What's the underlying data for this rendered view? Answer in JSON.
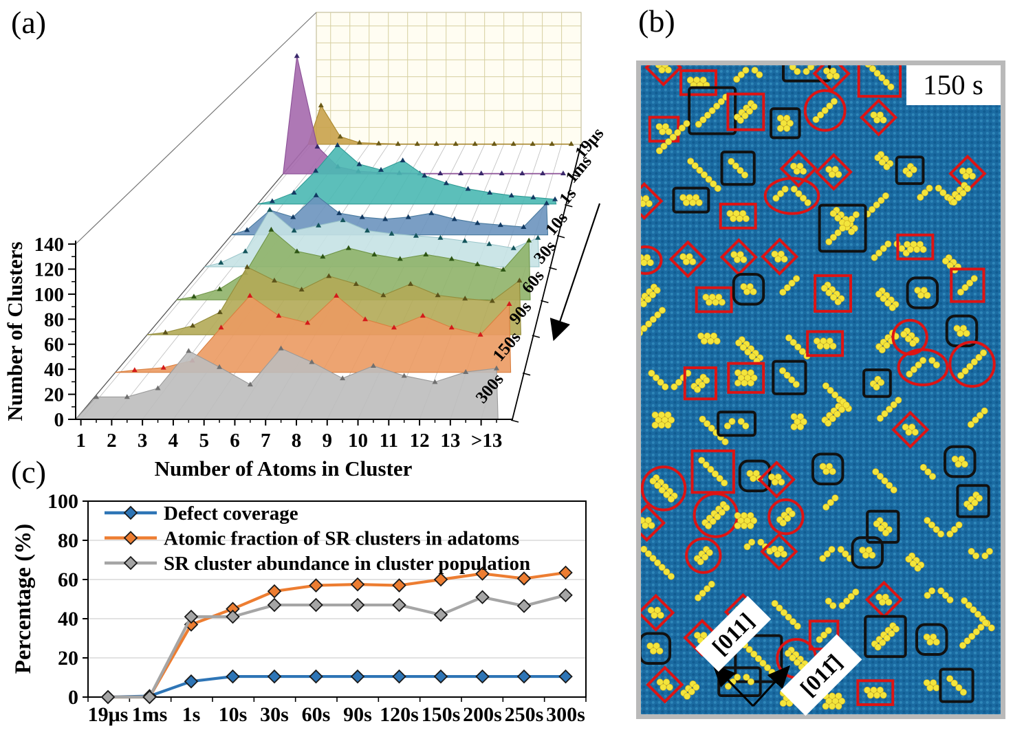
{
  "figure": {
    "panel_labels": {
      "a": "(a)",
      "b": "(b)",
      "c": "(c)"
    },
    "background": "#ffffff"
  },
  "chart_data": [
    {
      "id": "panel_a",
      "type": "area",
      "projection": "3d-waterfall",
      "xlabel": "Number of Atoms in Cluster",
      "ylabel": "Number of Clusters",
      "x_categories": [
        "1",
        "2",
        "3",
        "4",
        "5",
        "6",
        "7",
        "8",
        "9",
        "10",
        "11",
        "12",
        "13",
        ">13"
      ],
      "y_ticks": [
        0,
        20,
        40,
        60,
        80,
        100,
        120,
        140
      ],
      "ylim": [
        0,
        150
      ],
      "depth_axis_note": "time series stacked back (19μs) to front (300s); arrow beside depth axis points toward later times",
      "series": [
        {
          "name": "19μs",
          "fill": "#c9a24b",
          "edge": "#a8872e",
          "marker": "#6b5a17",
          "values": [
            45,
            9,
            2,
            1,
            0.5,
            0.5,
            0.5,
            0.5,
            0.5,
            0.5,
            0.5,
            0.5,
            0.5,
            0.5
          ]
        },
        {
          "name": "1ms",
          "fill": "#a569ad",
          "edge": "#8a4f96",
          "marker": "#39286b",
          "values": [
            130,
            30,
            8,
            3,
            1.5,
            1,
            0.5,
            0.5,
            0.5,
            0.5,
            0.5,
            0.5,
            0.5,
            0.5
          ]
        },
        {
          "name": "1s",
          "fill": "#4ab8b2",
          "edge": "#2f9b95",
          "marker": "#123a63",
          "values": [
            3,
            12,
            35,
            62,
            42,
            36,
            46,
            30,
            22,
            16,
            12,
            9,
            7,
            5
          ]
        },
        {
          "name": "10s",
          "fill": "#6b94be",
          "edge": "#48799e",
          "marker": "#123a63",
          "values": [
            5,
            25,
            18,
            40,
            22,
            18,
            16,
            18,
            22,
            16,
            12,
            10,
            8,
            32
          ]
        },
        {
          "name": "30s",
          "fill": "#c5e2e4",
          "edge": "#9cc6cb",
          "marker": "#14555c",
          "values": [
            4,
            15,
            55,
            35,
            40,
            45,
            35,
            32,
            30,
            28,
            25,
            22,
            18,
            28
          ]
        },
        {
          "name": "60s",
          "fill": "#8fb269",
          "edge": "#6f9548",
          "marker": "#2e5615",
          "values": [
            3,
            10,
            25,
            65,
            45,
            40,
            48,
            42,
            38,
            42,
            38,
            33,
            28,
            55
          ]
        },
        {
          "name": "90s",
          "fill": "#b3aa56",
          "edge": "#938c3a",
          "marker": "#5c531a",
          "values": [
            2,
            8,
            20,
            60,
            48,
            40,
            52,
            45,
            35,
            45,
            35,
            32,
            30,
            48
          ]
        },
        {
          "name": "150s",
          "fill": "#eb9a62",
          "edge": "#d97f3f",
          "marker": "#d41a1a",
          "values": [
            2,
            4,
            10,
            38,
            65,
            48,
            42,
            65,
            45,
            38,
            48,
            38,
            32,
            58
          ]
        },
        {
          "name": "300s",
          "fill": "#bcbcbc",
          "edge": "#9a9a9a",
          "marker": "#707070",
          "values": [
            18,
            18,
            25,
            55,
            42,
            28,
            57,
            46,
            33,
            43,
            35,
            30,
            38,
            41
          ]
        }
      ]
    },
    {
      "id": "panel_c",
      "type": "line",
      "ylabel": "Percentage (%)",
      "y_ticks": [
        0,
        20,
        40,
        60,
        80,
        100
      ],
      "ylim": [
        0,
        100
      ],
      "grid": "horizontal",
      "legend_position": "top-left-inside",
      "categories": [
        "19μs",
        "1ms",
        "1s",
        "10s",
        "30s",
        "60s",
        "90s",
        "120s",
        "150s",
        "200s",
        "250s",
        "300s"
      ],
      "series": [
        {
          "name": "Defect coverage",
          "color": "#2e75b6",
          "values": [
            0,
            0.5,
            8,
            10.5,
            10.5,
            10.5,
            10.5,
            10.5,
            10.5,
            10.5,
            10.5,
            10.5
          ]
        },
        {
          "name": "Atomic fraction of SR clusters in adatoms",
          "color": "#ed7d31",
          "values": [
            0,
            0,
            37,
            45,
            54,
            57,
            57.5,
            57,
            60,
            63,
            60.5,
            63.5
          ]
        },
        {
          "name": "SR cluster abundance in cluster population",
          "color": "#a5a5a5",
          "values": [
            0,
            0,
            41,
            41,
            47,
            47,
            47,
            47,
            42,
            51,
            46.5,
            52
          ]
        }
      ]
    }
  ],
  "panel_b": {
    "time_label": "150 s",
    "direction_labels": [
      "[011]",
      "[011̄]"
    ],
    "substrate_color": "#1b6ba2",
    "substrate_dot_dark": "#115d92",
    "substrate_dot_light": "#2e86b8",
    "adatom_color": "#f3e53c",
    "adatom_edge": "#caa81e",
    "annotation_red": "#dd1414",
    "annotation_black": "#111111",
    "border_color": "#b9b9b9",
    "annotation_shapes": [
      "red-diamond",
      "red-rectangle",
      "red-ellipse",
      "red-circle",
      "black-rectangle",
      "black-rounded-square"
    ]
  }
}
